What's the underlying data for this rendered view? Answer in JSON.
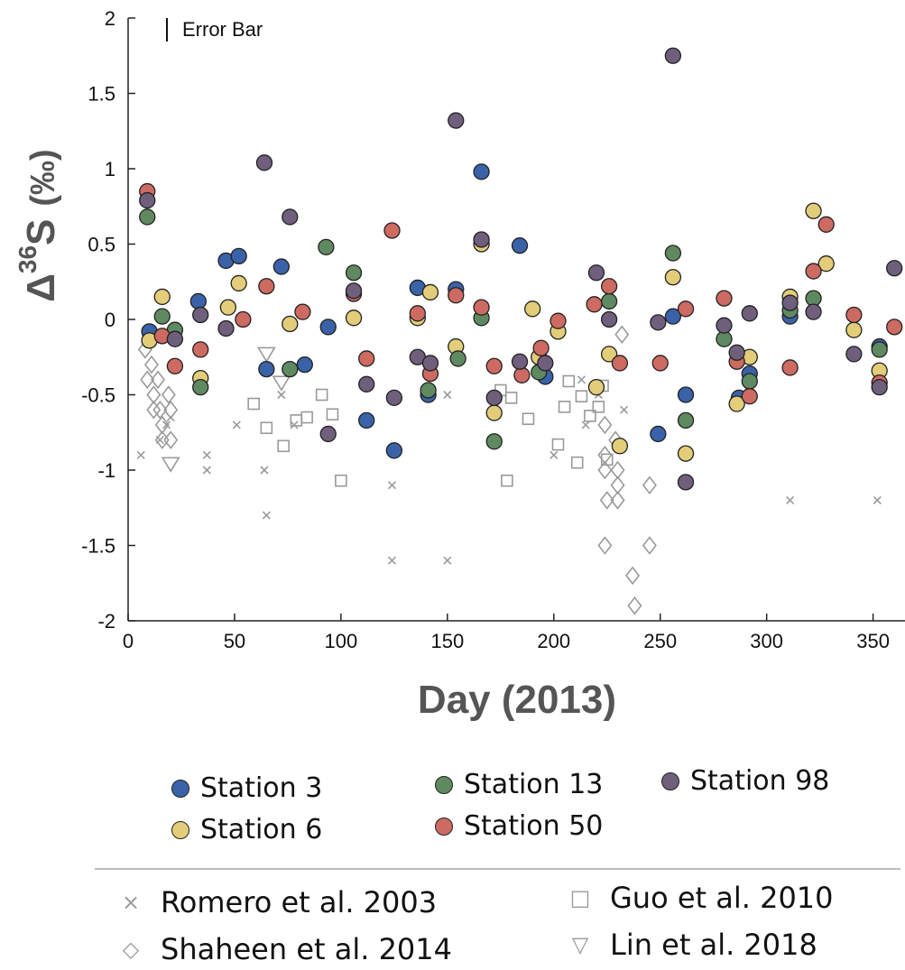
{
  "chart_data": {
    "type": "scatter",
    "title": "",
    "xlabel": "Day (2013)",
    "ylabel_prefix": "Δ",
    "ylabel_superscript": "36",
    "ylabel_main": "S",
    "ylabel_unit": "(‰)",
    "xlim": [
      0,
      365
    ],
    "ylim": [
      -2,
      2
    ],
    "xticks": [
      0,
      50,
      100,
      150,
      200,
      250,
      300,
      350
    ],
    "yticks": [
      -2,
      -1.5,
      -1,
      -0.5,
      0,
      0.5,
      1,
      1.5,
      2
    ],
    "grid": false,
    "error_bar_label": "Error Bar",
    "series": [
      {
        "name": "Station 3",
        "color": "#3a62a8",
        "points": [
          [
            10,
            -0.08
          ],
          [
            33,
            0.12
          ],
          [
            46,
            0.39
          ],
          [
            52,
            0.42
          ],
          [
            65,
            -0.33
          ],
          [
            72,
            0.35
          ],
          [
            83,
            -0.3
          ],
          [
            94,
            -0.05
          ],
          [
            112,
            -0.67
          ],
          [
            125,
            -0.87
          ],
          [
            136,
            0.21
          ],
          [
            141,
            -0.5
          ],
          [
            154,
            0.2
          ],
          [
            166,
            0.98
          ],
          [
            184,
            0.49
          ],
          [
            196,
            -0.38
          ],
          [
            249,
            -0.76
          ],
          [
            256,
            0.02
          ],
          [
            262,
            -0.5
          ],
          [
            287,
            -0.52
          ],
          [
            292,
            -0.36
          ],
          [
            311,
            0.02
          ],
          [
            353,
            -0.18
          ]
        ]
      },
      {
        "name": "Station 6",
        "color": "#e3cd78",
        "points": [
          [
            10,
            -0.14
          ],
          [
            16,
            0.15
          ],
          [
            34,
            -0.39
          ],
          [
            47,
            0.08
          ],
          [
            52,
            0.24
          ],
          [
            76,
            -0.03
          ],
          [
            106,
            0.01
          ],
          [
            136,
            0.01
          ],
          [
            142,
            0.18
          ],
          [
            154,
            -0.18
          ],
          [
            166,
            0.5
          ],
          [
            172,
            -0.62
          ],
          [
            190,
            0.07
          ],
          [
            193,
            -0.25
          ],
          [
            202,
            -0.08
          ],
          [
            220,
            -0.45
          ],
          [
            226,
            -0.23
          ],
          [
            231,
            -0.84
          ],
          [
            256,
            0.28
          ],
          [
            262,
            -0.89
          ],
          [
            286,
            -0.56
          ],
          [
            292,
            -0.25
          ],
          [
            311,
            0.15
          ],
          [
            322,
            0.72
          ],
          [
            328,
            0.37
          ],
          [
            341,
            -0.07
          ],
          [
            353,
            -0.34
          ]
        ]
      },
      {
        "name": "Station 13",
        "color": "#5f8a61",
        "points": [
          [
            9,
            0.68
          ],
          [
            16,
            0.02
          ],
          [
            22,
            -0.07
          ],
          [
            34,
            -0.45
          ],
          [
            76,
            -0.33
          ],
          [
            93,
            0.48
          ],
          [
            106,
            0.31
          ],
          [
            141,
            -0.47
          ],
          [
            155,
            -0.26
          ],
          [
            166,
            0.01
          ],
          [
            172,
            -0.81
          ],
          [
            193,
            -0.35
          ],
          [
            226,
            0.12
          ],
          [
            256,
            0.44
          ],
          [
            262,
            -0.67
          ],
          [
            280,
            -0.13
          ],
          [
            292,
            -0.41
          ],
          [
            311,
            0.06
          ],
          [
            322,
            0.14
          ],
          [
            353,
            -0.2
          ]
        ]
      },
      {
        "name": "Station 50",
        "color": "#cd6a62",
        "points": [
          [
            9,
            0.85
          ],
          [
            16,
            -0.11
          ],
          [
            22,
            -0.31
          ],
          [
            34,
            -0.2
          ],
          [
            65,
            0.22
          ],
          [
            54,
            0.0
          ],
          [
            82,
            0.05
          ],
          [
            106,
            0.17
          ],
          [
            112,
            -0.26
          ],
          [
            124,
            0.59
          ],
          [
            136,
            0.04
          ],
          [
            142,
            -0.36
          ],
          [
            154,
            0.16
          ],
          [
            166,
            0.08
          ],
          [
            172,
            -0.31
          ],
          [
            185,
            -0.37
          ],
          [
            194,
            -0.19
          ],
          [
            202,
            -0.01
          ],
          [
            219,
            0.1
          ],
          [
            226,
            0.22
          ],
          [
            231,
            -0.29
          ],
          [
            250,
            -0.29
          ],
          [
            262,
            0.07
          ],
          [
            280,
            0.14
          ],
          [
            286,
            -0.28
          ],
          [
            292,
            -0.51
          ],
          [
            311,
            -0.32
          ],
          [
            322,
            0.32
          ],
          [
            328,
            0.63
          ],
          [
            341,
            0.03
          ],
          [
            353,
            -0.42
          ],
          [
            360,
            -0.05
          ]
        ]
      },
      {
        "name": "Station 98",
        "color": "#6f5e7c",
        "points": [
          [
            9,
            0.79
          ],
          [
            22,
            -0.13
          ],
          [
            34,
            0.03
          ],
          [
            46,
            -0.06
          ],
          [
            64,
            1.04
          ],
          [
            76,
            0.68
          ],
          [
            94,
            -0.76
          ],
          [
            106,
            0.19
          ],
          [
            112,
            -0.43
          ],
          [
            125,
            -0.52
          ],
          [
            136,
            -0.25
          ],
          [
            142,
            -0.29
          ],
          [
            154,
            1.32
          ],
          [
            166,
            0.53
          ],
          [
            172,
            -0.52
          ],
          [
            184,
            -0.28
          ],
          [
            196,
            -0.29
          ],
          [
            220,
            0.31
          ],
          [
            226,
            0.0
          ],
          [
            249,
            -0.02
          ],
          [
            256,
            1.75
          ],
          [
            262,
            -1.08
          ],
          [
            280,
            -0.04
          ],
          [
            286,
            -0.22
          ],
          [
            292,
            0.04
          ],
          [
            311,
            0.11
          ],
          [
            322,
            0.05
          ],
          [
            341,
            -0.23
          ],
          [
            353,
            -0.45
          ],
          [
            360,
            0.34
          ]
        ]
      }
    ],
    "reference_series": [
      {
        "name": "Romero et al. 2003",
        "marker": "x",
        "color": "#9a9a9a",
        "points": [
          [
            6,
            -0.9
          ],
          [
            15,
            -0.8
          ],
          [
            18,
            -0.7
          ],
          [
            20,
            -0.65
          ],
          [
            37,
            -0.9
          ],
          [
            37,
            -1.0
          ],
          [
            51,
            -0.7
          ],
          [
            64,
            -1.0
          ],
          [
            65,
            -1.3
          ],
          [
            72,
            -0.5
          ],
          [
            78,
            -0.7
          ],
          [
            124,
            -1.1
          ],
          [
            124,
            -1.6
          ],
          [
            150,
            -0.5
          ],
          [
            150,
            -1.6
          ],
          [
            200,
            -0.9
          ],
          [
            213,
            -0.4
          ],
          [
            215,
            -0.7
          ],
          [
            221,
            -0.5
          ],
          [
            233,
            -0.6
          ],
          [
            311,
            -1.2
          ],
          [
            352,
            -1.2
          ]
        ]
      },
      {
        "name": "Shaheen et al. 2014",
        "marker": "diamond",
        "color": "#9a9a9a",
        "points": [
          [
            8,
            -0.2
          ],
          [
            9,
            -0.4
          ],
          [
            11,
            -0.3
          ],
          [
            12,
            -0.5
          ],
          [
            12,
            -0.6
          ],
          [
            14,
            -0.4
          ],
          [
            15,
            -0.6
          ],
          [
            16,
            -0.7
          ],
          [
            16,
            -0.8
          ],
          [
            19,
            -0.5
          ],
          [
            20,
            -0.6
          ],
          [
            20,
            -0.8
          ],
          [
            224,
            -0.7
          ],
          [
            224,
            -0.9
          ],
          [
            224,
            -1.0
          ],
          [
            225,
            -1.2
          ],
          [
            224,
            -1.5
          ],
          [
            229,
            -0.8
          ],
          [
            230,
            -1.0
          ],
          [
            230,
            -1.1
          ],
          [
            230,
            -1.2
          ],
          [
            232,
            -0.1
          ],
          [
            237,
            -1.7
          ],
          [
            238,
            -1.9
          ],
          [
            245,
            -1.1
          ],
          [
            245,
            -1.5
          ]
        ]
      },
      {
        "name": "Guo et al. 2010",
        "marker": "square",
        "color": "#9a9a9a",
        "points": [
          [
            59,
            -0.56
          ],
          [
            65,
            -0.72
          ],
          [
            73,
            -0.84
          ],
          [
            79,
            -0.67
          ],
          [
            84,
            -0.65
          ],
          [
            91,
            -0.5
          ],
          [
            96,
            -0.63
          ],
          [
            100,
            -1.07
          ],
          [
            175,
            -0.47
          ],
          [
            178,
            -1.07
          ],
          [
            180,
            -0.52
          ],
          [
            188,
            -0.66
          ],
          [
            202,
            -0.83
          ],
          [
            205,
            -0.58
          ],
          [
            207,
            -0.41
          ],
          [
            211,
            -0.95
          ],
          [
            213,
            -0.51
          ],
          [
            217,
            -0.64
          ],
          [
            221,
            -0.58
          ],
          [
            223,
            -0.44
          ],
          [
            225,
            -0.93
          ]
        ]
      },
      {
        "name": "Lin et al. 2018",
        "marker": "triangle",
        "color": "#9a9a9a",
        "points": [
          [
            20,
            -0.96
          ],
          [
            65,
            -0.23
          ],
          [
            72,
            -0.42
          ]
        ]
      }
    ]
  },
  "legend": {
    "stations": [
      {
        "label": "Station 3",
        "color": "#3a62a8"
      },
      {
        "label": "Station 6",
        "color": "#e3cd78"
      },
      {
        "label": "Station 13",
        "color": "#5f8a61"
      },
      {
        "label": "Station 50",
        "color": "#cd6a62"
      },
      {
        "label": "Station 98",
        "color": "#6f5e7c"
      }
    ],
    "references": [
      {
        "label": "Romero et al. 2003",
        "symbol": "×"
      },
      {
        "label": "Guo et al. 2010",
        "symbol": "□"
      },
      {
        "label": "Shaheen et al. 2014",
        "symbol": "◇"
      },
      {
        "label": "Lin et al. 2018",
        "symbol": "▽"
      }
    ]
  }
}
